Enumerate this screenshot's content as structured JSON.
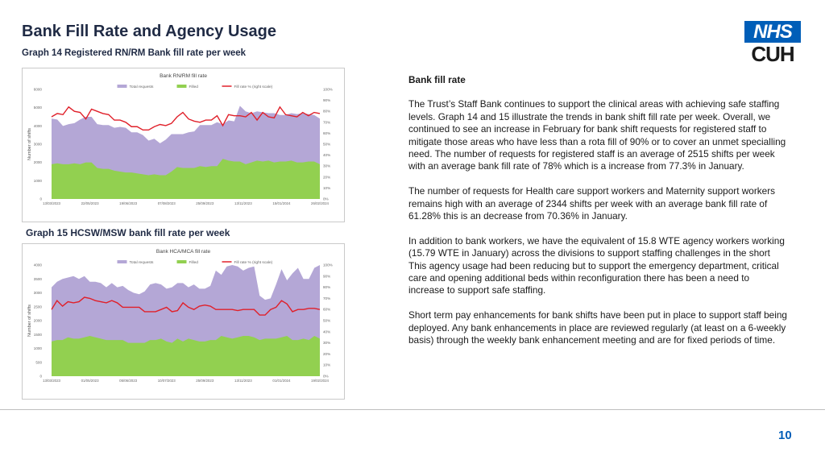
{
  "header": {
    "title": "Bank Fill Rate and Agency Usage",
    "subtitle": "Graph 14 Registered RN/RM Bank fill rate per week"
  },
  "logo": {
    "top": "NHS",
    "bottom": "CUH"
  },
  "graph15_label": "Graph 15 HCSW/MSW bank fill rate per week",
  "text": {
    "heading": "Bank fill rate",
    "para1": "The Trust’s Staff Bank continues to support the clinical areas with achieving safe staffing levels. Graph 14 and 15 illustrate the trends in bank shift fill rate per week. Overall, we continued to see an increase in  February for bank shift requests for registered staff to mitigate those areas who have less than a rota fill of 90% or to cover an unmet specialling need.  The number of requests for registered staff is an average of 2515 shifts per week with an average bank fill rate of 78% which is a increase from 77.3% in January.",
    "para2": "The number of requests for Health care support workers and Maternity support workers remains high with an average of 2344 shifts per week with an average bank fill rate of 61.28% this is an decrease from 70.36% in January.",
    "para3": "In addition to bank workers, we have the equivalent of 15.8 WTE agency workers working (15.79 WTE in January) across the divisions to support staffing challenges in the short This agency usage had been reducing but to support the emergency department, critical care and opening additional beds within reconfiguration there has been a need to increase to support safe staffing.",
    "para4": "Short term pay enhancements for bank shifts have been put in place to support staff being deployed.   Any bank enhancements in place are reviewed regularly (at least on a 6-weekly basis) through the weekly bank enhancement meeting and are for fixed periods of time."
  },
  "page_number": "10",
  "colors": {
    "requests": "#b4a7d6",
    "filled": "#92d050",
    "fill_rate": "#e0202a",
    "nhs_blue": "#005eb8"
  },
  "chart_data": [
    {
      "type": "area",
      "title": "Bank RN/RM fill rate",
      "ylabel": "Number of shifts",
      "ylim": [
        0,
        6000
      ],
      "yticks": [
        "0",
        "1000",
        "2000",
        "3000",
        "4000",
        "5000",
        "6000"
      ],
      "y2lim": [
        0,
        100
      ],
      "y2ticks": [
        "0%",
        "10%",
        "20%",
        "30%",
        "40%",
        "50%",
        "60%",
        "70%",
        "80%",
        "90%",
        "100%"
      ],
      "xticks": [
        "13/03/2023",
        "22/05/2023",
        "19/06/2023",
        "07/08/2023",
        "25/09/2023",
        "13/11/2023",
        "15/01/2024",
        "26/02/2024"
      ],
      "legend": [
        "Total requests",
        "Filled",
        "Fill rate % (right scale)"
      ],
      "legend_position": "top",
      "series": [
        {
          "name": "Total requests",
          "values": [
            4400,
            4350,
            4000,
            4100,
            4150,
            4350,
            4500,
            4500,
            4100,
            4050,
            4050,
            3900,
            3950,
            3900,
            3650,
            3650,
            3500,
            3200,
            3300,
            3050,
            3250,
            3550,
            3550,
            3550,
            3650,
            3700,
            4050,
            4050,
            4050,
            4200,
            4100,
            4300,
            4250,
            5100,
            4800,
            4700,
            4800,
            4750,
            4700,
            4700,
            4600,
            4600,
            4700,
            4650,
            4700,
            4650,
            4600,
            4400
          ]
        },
        {
          "name": "Filled",
          "values": [
            1900,
            1950,
            1900,
            1900,
            1950,
            1900,
            2000,
            2000,
            1700,
            1650,
            1650,
            1550,
            1500,
            1450,
            1450,
            1400,
            1350,
            1300,
            1350,
            1300,
            1300,
            1500,
            1750,
            1700,
            1700,
            1700,
            1800,
            1750,
            1800,
            1800,
            2200,
            2100,
            2050,
            2050,
            1900,
            2000,
            2100,
            2050,
            2100,
            2000,
            2050,
            2050,
            2100,
            2000,
            2000,
            2050,
            2050,
            1900
          ]
        },
        {
          "name": "Fill rate % (right scale)",
          "values": [
            75,
            78,
            77,
            84,
            80,
            79,
            73,
            82,
            80,
            78,
            77,
            72,
            72,
            70,
            66,
            66,
            63,
            63,
            66,
            68,
            67,
            69,
            75,
            79,
            73,
            71,
            70,
            72,
            72,
            76,
            67,
            77,
            76,
            76,
            75,
            79,
            72,
            79,
            75,
            74,
            84,
            77,
            76,
            75,
            79,
            76,
            79,
            78
          ]
        }
      ]
    },
    {
      "type": "area",
      "title": "Bank HCA/MCA fill rate",
      "ylabel": "Number of shifts",
      "ylim": [
        0,
        4000
      ],
      "yticks": [
        "0",
        "500",
        "1000",
        "1500",
        "2000",
        "2500",
        "3000",
        "3500",
        "4000"
      ],
      "y2lim": [
        0,
        100
      ],
      "y2ticks": [
        "0%",
        "10%",
        "20%",
        "30%",
        "40%",
        "50%",
        "60%",
        "70%",
        "80%",
        "90%",
        "100%"
      ],
      "xticks": [
        "13/03/2023",
        "01/05/2023",
        "05/06/2023",
        "10/07/2023",
        "25/09/2023",
        "13/11/2023",
        "01/01/2024",
        "19/02/2024"
      ],
      "legend": [
        "Total requests",
        "Filled",
        "Fill rate % (right scale)"
      ],
      "legend_position": "top",
      "series": [
        {
          "name": "Total requests",
          "values": [
            3200,
            3400,
            3500,
            3550,
            3600,
            3500,
            3600,
            3400,
            3400,
            3350,
            3200,
            3350,
            3200,
            3250,
            3100,
            3000,
            2950,
            3050,
            3300,
            3350,
            3300,
            3150,
            3200,
            3350,
            3350,
            3200,
            3300,
            3150,
            3150,
            3250,
            3800,
            3650,
            3950,
            4000,
            3950,
            3800,
            3900,
            3950,
            2900,
            2750,
            2800,
            3300,
            3850,
            3450,
            3700,
            3900,
            3500,
            3500,
            3900,
            4000
          ]
        },
        {
          "name": "Filled",
          "values": [
            1250,
            1300,
            1300,
            1400,
            1350,
            1350,
            1400,
            1450,
            1400,
            1350,
            1300,
            1300,
            1300,
            1300,
            1200,
            1200,
            1200,
            1200,
            1300,
            1300,
            1350,
            1250,
            1200,
            1350,
            1250,
            1350,
            1300,
            1250,
            1250,
            1300,
            1300,
            1450,
            1400,
            1350,
            1400,
            1450,
            1450,
            1400,
            1300,
            1350,
            1350,
            1350,
            1400,
            1450,
            1300,
            1300,
            1350,
            1300,
            1450,
            1350
          ]
        },
        {
          "name": "Fill rate % (right scale)",
          "values": [
            60,
            68,
            63,
            67,
            66,
            67,
            71,
            70,
            68,
            67,
            66,
            68,
            66,
            62,
            62,
            62,
            62,
            58,
            58,
            58,
            60,
            62,
            58,
            59,
            66,
            62,
            60,
            63,
            64,
            63,
            60,
            60,
            60,
            60,
            59,
            60,
            60,
            60,
            55,
            55,
            60,
            62,
            68,
            65,
            58,
            60,
            60,
            61,
            61,
            60
          ]
        }
      ]
    }
  ]
}
